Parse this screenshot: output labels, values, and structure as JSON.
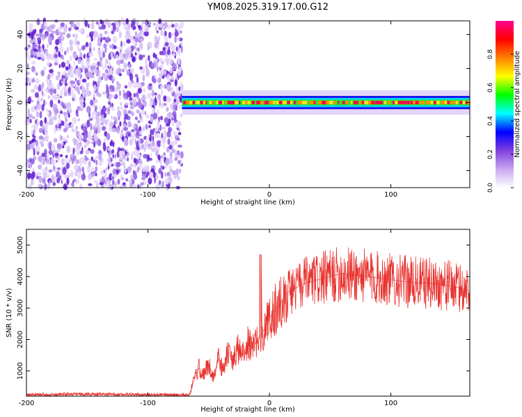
{
  "figure_title": "YM08.2025.319.17.00.G12",
  "chart_data": [
    {
      "type": "heatmap",
      "title": "YM08.2025.319.17.00.G12",
      "xlabel": "Height of straight line (km)",
      "ylabel": "Frequency (Hz)",
      "xlim": [
        -200,
        165
      ],
      "ylim": [
        -50,
        48
      ],
      "xticks": [
        -200,
        -100,
        0,
        100
      ],
      "xtick_labels": [
        "-200",
        "-100",
        "0",
        "100"
      ],
      "yticks": [
        -40,
        -20,
        0,
        20,
        40
      ],
      "ytick_labels": [
        "-40",
        "-20",
        "0",
        "20",
        "40"
      ],
      "noise_region_x": [
        -200,
        -72
      ],
      "signal_band": {
        "x_start": -72,
        "x_end": 165,
        "center_hz": 0,
        "halfwidth_hz": 3
      },
      "colorbar": {
        "label": "Normalized spectral amplitude",
        "range": [
          0,
          1
        ],
        "ticks": [
          0.0,
          0.2,
          0.4,
          0.6,
          0.8
        ],
        "tick_labels": [
          "0.0",
          "0.2",
          "0.4",
          "0.6",
          "0.8"
        ],
        "colors": [
          "#ffffff",
          "#c8a8f0",
          "#8040e0",
          "#0000ff",
          "#00ffff",
          "#00ff00",
          "#ffff00",
          "#ff8000",
          "#ff0000",
          "#ff0090"
        ]
      },
      "grid": false
    },
    {
      "type": "line",
      "xlabel": "Height of straight line (km)",
      "ylabel": "SNR (10 * v/v)",
      "xlim": [
        -200,
        165
      ],
      "ylim": [
        200,
        5500
      ],
      "xticks": [
        -200,
        -100,
        0,
        100
      ],
      "xtick_labels": [
        "-200",
        "-100",
        "0",
        "100"
      ],
      "yticks": [
        1000,
        2000,
        3000,
        4000,
        5000
      ],
      "ytick_labels": [
        "1000",
        "2000",
        "3000",
        "4000",
        "5000"
      ],
      "series": [
        {
          "name": "SNR",
          "color": "#e8302c",
          "x": [
            -200,
            -180,
            -160,
            -140,
            -120,
            -100,
            -80,
            -66,
            -62,
            -58,
            -54,
            -50,
            -46,
            -42,
            -38,
            -34,
            -30,
            -26,
            -22,
            -18,
            -14,
            -10,
            -6,
            -2,
            2,
            6,
            10,
            15,
            20,
            25,
            30,
            40,
            50,
            60,
            70,
            80,
            90,
            100,
            110,
            120,
            130,
            140,
            150,
            160,
            165
          ],
          "values": [
            240,
            250,
            270,
            260,
            250,
            240,
            240,
            240,
            700,
            1100,
            900,
            1200,
            800,
            1400,
            1000,
            1600,
            1300,
            1700,
            1500,
            1900,
            1700,
            2000,
            2200,
            2500,
            2800,
            3000,
            3200,
            3500,
            3600,
            3700,
            3800,
            3900,
            4000,
            4100,
            4050,
            4000,
            3950,
            3900,
            3850,
            3800,
            3800,
            3750,
            3700,
            3600,
            3550
          ]
        }
      ],
      "grid": false
    }
  ]
}
